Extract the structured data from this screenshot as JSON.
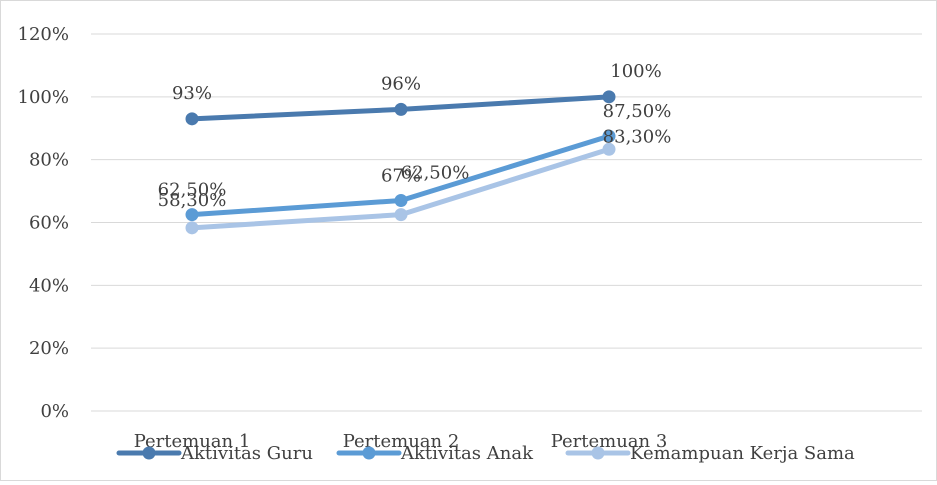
{
  "chart_data": {
    "type": "line",
    "categories": [
      "Pertemuan 1",
      "Pertemuan 2",
      "Pertemuan 3"
    ],
    "ylim": [
      0,
      120
    ],
    "ytick_values": [
      0,
      20,
      40,
      60,
      80,
      100,
      120
    ],
    "ytick_labels": [
      "0%",
      "20%",
      "40%",
      "60%",
      "80%",
      "100%",
      "120%"
    ],
    "grid": true,
    "legend_position": "bottom",
    "series": [
      {
        "name": "Aktivitas Guru",
        "values": [
          93,
          96,
          100
        ],
        "labels": [
          "93%",
          "96%",
          "100%"
        ],
        "color": "#4a7aae"
      },
      {
        "name": "Aktivitas Anak",
        "values": [
          62.5,
          67,
          87.5
        ],
        "labels": [
          "62,50%",
          "67%",
          "87,50%"
        ],
        "color": "#5b9bd5"
      },
      {
        "name": "Kemampuan Kerja Sama",
        "values": [
          58.3,
          62.5,
          83.3
        ],
        "labels": [
          "58,30%",
          "62,50%",
          "83,30%"
        ],
        "color": "#a9c4e6"
      }
    ]
  }
}
